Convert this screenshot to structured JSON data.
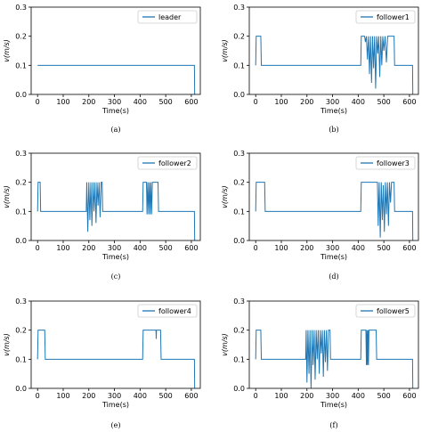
{
  "chart_data": [
    {
      "type": "line",
      "caption": "(a)",
      "xlabel": "Time(s)",
      "ylabel": "v(m/s)",
      "xlim": [
        -25,
        635
      ],
      "ylim": [
        0,
        0.3
      ],
      "xticks": [
        0,
        100,
        200,
        300,
        400,
        500,
        600
      ],
      "yticks": [
        0.0,
        0.1,
        0.2,
        0.3
      ],
      "legend_position": "top-right",
      "color": "#1f77b4",
      "series": [
        {
          "name": "leader",
          "points": [
            [
              0,
              0.1
            ],
            [
              612,
              0.1
            ],
            [
              613,
              0.0
            ]
          ]
        }
      ]
    },
    {
      "type": "line",
      "caption": "(b)",
      "xlabel": "Time(s)",
      "ylabel": "v(m/s)",
      "xlim": [
        -25,
        635
      ],
      "ylim": [
        0,
        0.3
      ],
      "xticks": [
        0,
        100,
        200,
        300,
        400,
        500,
        600
      ],
      "yticks": [
        0.0,
        0.1,
        0.2,
        0.3
      ],
      "legend_position": "top-right",
      "color": "#1f77b4",
      "series": [
        {
          "name": "follower1",
          "points": [
            [
              0,
              0.1
            ],
            [
              2,
              0.2
            ],
            [
              20,
              0.2
            ],
            [
              22,
              0.1
            ],
            [
              410,
              0.1
            ],
            [
              412,
              0.2
            ],
            [
              425,
              0.2
            ],
            [
              428,
              0.18
            ],
            [
              432,
              0.2
            ],
            [
              436,
              0.12
            ],
            [
              440,
              0.2
            ],
            [
              444,
              0.07
            ],
            [
              448,
              0.2
            ],
            [
              452,
              0.04
            ],
            [
              456,
              0.2
            ],
            [
              460,
              0.09
            ],
            [
              464,
              0.2
            ],
            [
              468,
              0.02
            ],
            [
              472,
              0.2
            ],
            [
              476,
              0.14
            ],
            [
              480,
              0.2
            ],
            [
              484,
              0.06
            ],
            [
              488,
              0.2
            ],
            [
              492,
              0.1
            ],
            [
              496,
              0.2
            ],
            [
              500,
              0.15
            ],
            [
              505,
              0.2
            ],
            [
              510,
              0.11
            ],
            [
              515,
              0.2
            ],
            [
              540,
              0.2
            ],
            [
              542,
              0.1
            ],
            [
              612,
              0.1
            ],
            [
              613,
              0.0
            ]
          ]
        }
      ]
    },
    {
      "type": "line",
      "caption": "(c)",
      "xlabel": "Time(s)",
      "ylabel": "v(m/s)",
      "xlim": [
        -25,
        635
      ],
      "ylim": [
        0,
        0.3
      ],
      "xticks": [
        0,
        100,
        200,
        300,
        400,
        500,
        600
      ],
      "yticks": [
        0.0,
        0.1,
        0.2,
        0.3
      ],
      "legend_position": "top-right",
      "color": "#1f77b4",
      "series": [
        {
          "name": "follower2",
          "points": [
            [
              0,
              0.1
            ],
            [
              2,
              0.2
            ],
            [
              10,
              0.2
            ],
            [
              12,
              0.1
            ],
            [
              190,
              0.1
            ],
            [
              192,
              0.2
            ],
            [
              196,
              0.03
            ],
            [
              200,
              0.2
            ],
            [
              204,
              0.07
            ],
            [
              208,
              0.2
            ],
            [
              212,
              0.05
            ],
            [
              216,
              0.2
            ],
            [
              220,
              0.1
            ],
            [
              224,
              0.2
            ],
            [
              228,
              0.06
            ],
            [
              232,
              0.2
            ],
            [
              236,
              0.12
            ],
            [
              240,
              0.2
            ],
            [
              244,
              0.08
            ],
            [
              248,
              0.2
            ],
            [
              252,
              0.2
            ],
            [
              254,
              0.1
            ],
            [
              410,
              0.1
            ],
            [
              412,
              0.2
            ],
            [
              425,
              0.2
            ],
            [
              427,
              0.09
            ],
            [
              430,
              0.2
            ],
            [
              433,
              0.09
            ],
            [
              436,
              0.2
            ],
            [
              439,
              0.09
            ],
            [
              442,
              0.2
            ],
            [
              445,
              0.09
            ],
            [
              448,
              0.2
            ],
            [
              470,
              0.2
            ],
            [
              472,
              0.1
            ],
            [
              612,
              0.1
            ],
            [
              613,
              0.0
            ]
          ]
        }
      ]
    },
    {
      "type": "line",
      "caption": "(d)",
      "xlabel": "Time(s)",
      "ylabel": "v(m/s)",
      "xlim": [
        -25,
        635
      ],
      "ylim": [
        0,
        0.3
      ],
      "xticks": [
        0,
        100,
        200,
        300,
        400,
        500,
        600
      ],
      "yticks": [
        0.0,
        0.1,
        0.2,
        0.3
      ],
      "legend_position": "top-right",
      "color": "#1f77b4",
      "series": [
        {
          "name": "follower3",
          "points": [
            [
              0,
              0.1
            ],
            [
              2,
              0.2
            ],
            [
              35,
              0.2
            ],
            [
              37,
              0.1
            ],
            [
              410,
              0.1
            ],
            [
              412,
              0.2
            ],
            [
              475,
              0.2
            ],
            [
              478,
              0.05
            ],
            [
              482,
              0.2
            ],
            [
              486,
              0.01
            ],
            [
              490,
              0.2
            ],
            [
              494,
              0.07
            ],
            [
              498,
              0.19
            ],
            [
              502,
              0.03
            ],
            [
              506,
              0.2
            ],
            [
              510,
              0.09
            ],
            [
              514,
              0.2
            ],
            [
              518,
              0.05
            ],
            [
              522,
              0.2
            ],
            [
              526,
              0.13
            ],
            [
              530,
              0.2
            ],
            [
              540,
              0.2
            ],
            [
              542,
              0.1
            ],
            [
              612,
              0.1
            ],
            [
              613,
              0.0
            ]
          ]
        }
      ]
    },
    {
      "type": "line",
      "caption": "(e)",
      "xlabel": "Time(s)",
      "ylabel": "v(m/s)",
      "xlim": [
        -25,
        635
      ],
      "ylim": [
        0,
        0.3
      ],
      "xticks": [
        0,
        100,
        200,
        300,
        400,
        500,
        600
      ],
      "yticks": [
        0.0,
        0.1,
        0.2,
        0.3
      ],
      "legend_position": "top-right",
      "color": "#1f77b4",
      "series": [
        {
          "name": "follower4",
          "points": [
            [
              0,
              0.1
            ],
            [
              2,
              0.2
            ],
            [
              28,
              0.2
            ],
            [
              30,
              0.1
            ],
            [
              410,
              0.1
            ],
            [
              412,
              0.2
            ],
            [
              462,
              0.2
            ],
            [
              463,
              0.17
            ],
            [
              464,
              0.2
            ],
            [
              480,
              0.2
            ],
            [
              482,
              0.1
            ],
            [
              612,
              0.1
            ],
            [
              613,
              0.0
            ]
          ]
        }
      ]
    },
    {
      "type": "line",
      "caption": "(f)",
      "xlabel": "Time(s)",
      "ylabel": "v(m/s)",
      "xlim": [
        -25,
        635
      ],
      "ylim": [
        0,
        0.3
      ],
      "xticks": [
        0,
        100,
        200,
        300,
        400,
        500,
        600
      ],
      "yticks": [
        0.0,
        0.1,
        0.2,
        0.3
      ],
      "legend_position": "top-right",
      "color": "#1f77b4",
      "series": [
        {
          "name": "follower5",
          "points": [
            [
              0,
              0.1
            ],
            [
              2,
              0.2
            ],
            [
              20,
              0.2
            ],
            [
              22,
              0.1
            ],
            [
              195,
              0.1
            ],
            [
              197,
              0.2
            ],
            [
              200,
              0.02
            ],
            [
              204,
              0.2
            ],
            [
              208,
              0.05
            ],
            [
              212,
              0.2
            ],
            [
              216,
              0.0
            ],
            [
              220,
              0.2
            ],
            [
              224,
              0.08
            ],
            [
              228,
              0.2
            ],
            [
              232,
              0.03
            ],
            [
              236,
              0.2
            ],
            [
              240,
              0.1
            ],
            [
              244,
              0.2
            ],
            [
              248,
              0.05
            ],
            [
              252,
              0.2
            ],
            [
              256,
              0.12
            ],
            [
              260,
              0.2
            ],
            [
              264,
              0.04
            ],
            [
              268,
              0.2
            ],
            [
              272,
              0.09
            ],
            [
              276,
              0.2
            ],
            [
              280,
              0.06
            ],
            [
              284,
              0.2
            ],
            [
              290,
              0.2
            ],
            [
              292,
              0.1
            ],
            [
              410,
              0.1
            ],
            [
              412,
              0.2
            ],
            [
              430,
              0.2
            ],
            [
              432,
              0.08
            ],
            [
              434,
              0.2
            ],
            [
              436,
              0.08
            ],
            [
              438,
              0.2
            ],
            [
              440,
              0.08
            ],
            [
              442,
              0.2
            ],
            [
              470,
              0.2
            ],
            [
              472,
              0.1
            ],
            [
              612,
              0.1
            ],
            [
              613,
              0.0
            ]
          ]
        }
      ]
    }
  ]
}
